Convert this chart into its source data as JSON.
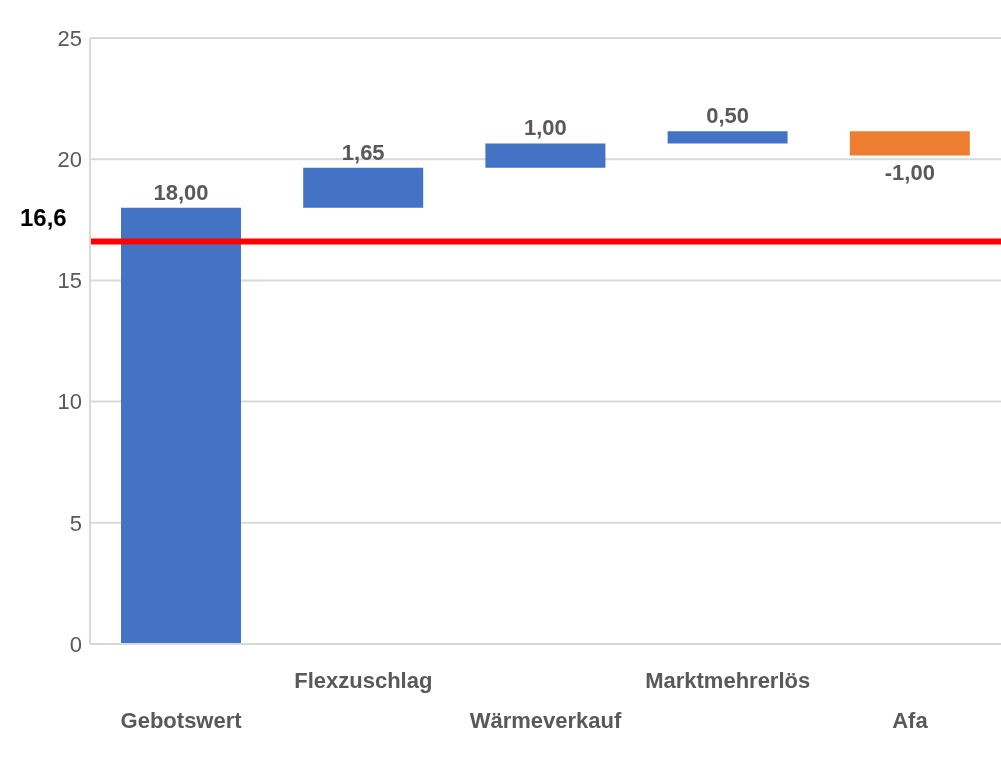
{
  "chart_data": {
    "type": "bar",
    "categories": [
      "Gebotswert",
      "Flexzuschlag",
      "Wärmeverkauf",
      "Marktmehrerlös",
      "Afa"
    ],
    "values": [
      18,
      1.65,
      1,
      0.5,
      -1
    ],
    "base": [
      0,
      18,
      19.65,
      20.65,
      21.15
    ],
    "colors": [
      "#4472c4",
      "#4472c4",
      "#4472c4",
      "#4472c4",
      "#ed7d31"
    ],
    "value_labels": [
      "18,00",
      "1,65",
      "1,00",
      "0,50",
      "-1,00"
    ],
    "ylim": [
      0,
      25
    ],
    "yticks": [
      0,
      5,
      10,
      15,
      20,
      25
    ],
    "grid": "y",
    "ref_lines": [
      {
        "axis": "y",
        "value": 16.6,
        "label": "16,6",
        "color": "#ff0000"
      }
    ]
  }
}
